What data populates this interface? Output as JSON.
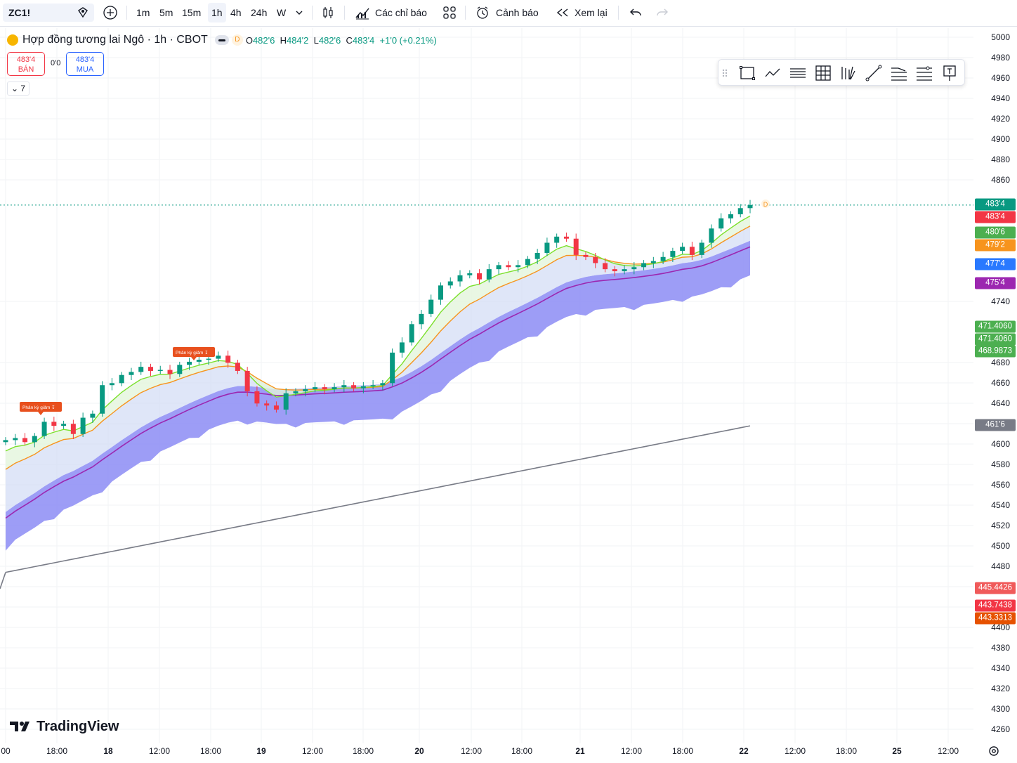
{
  "toolbar": {
    "symbol": "ZC1!",
    "timeframes": [
      "1m",
      "5m",
      "15m",
      "1h",
      "4h",
      "24h",
      "W"
    ],
    "active_timeframe": "1h",
    "indicators_label": "Các chỉ báo",
    "alert_label": "Cảnh báo",
    "replay_label": "Xem lại"
  },
  "legend": {
    "title": "Hợp đồng tương lai Ngô · 1h · CBOT",
    "badge": "D",
    "open_label": "O",
    "open": "482'6",
    "high_label": "H",
    "high": "484'2",
    "low_label": "L",
    "low": "482'6",
    "close_label": "C",
    "close": "483'4",
    "change": "+1'0 (+0.21%)"
  },
  "order_panel": {
    "sell_price": "483'4",
    "sell_label": "BÁN",
    "spread": "0'0",
    "buy_price": "483'4",
    "buy_label": "MUA",
    "collapse_count": "7"
  },
  "colors": {
    "up": "#089981",
    "down": "#f23645",
    "ema_green": "#7ce02c",
    "ema_orange": "#f7941d",
    "ma_purple": "#9c27b0",
    "ma_gray": "#787b86",
    "cloud_dark": "#8c8cf5",
    "cloud_light": "#d2dcf5"
  },
  "price_axis": {
    "ticks": [
      "5000",
      "4980",
      "4960",
      "4940",
      "4920",
      "4900",
      "4880",
      "4860",
      "4740",
      "4680",
      "4660",
      "4640",
      "4600",
      "4580",
      "4560",
      "4540",
      "4520",
      "4500",
      "4480",
      "4400",
      "4380",
      "4340",
      "4320",
      "4300",
      "4260"
    ],
    "tags": [
      {
        "text": "483'4",
        "color": "#089981"
      },
      {
        "text": "483'4",
        "color": "#f23645"
      },
      {
        "text": "480'6",
        "color": "#4caf50"
      },
      {
        "text": "479'2",
        "color": "#f7941d"
      },
      {
        "text": "477'4",
        "color": "#2979ff"
      },
      {
        "text": "475'4",
        "color": "#9c27b0"
      },
      {
        "text": "471.4060",
        "color": "#4caf50"
      },
      {
        "text": "471.4060",
        "color": "#4caf50"
      },
      {
        "text": "468.9873",
        "color": "#4caf50"
      },
      {
        "text": "461'6",
        "color": "#787b86"
      },
      {
        "text": "445.4426",
        "color": "#f05a5a"
      },
      {
        "text": "443.7438",
        "color": "#f23645"
      },
      {
        "text": "443.3313",
        "color": "#e65100"
      }
    ]
  },
  "time_axis": [
    "00",
    "18:00",
    "18",
    "12:00",
    "18:00",
    "19",
    "12:00",
    "18:00",
    "20",
    "12:00",
    "18:00",
    "21",
    "12:00",
    "18:00",
    "22",
    "12:00",
    "18:00",
    "25",
    "12:00"
  ],
  "annotations": [
    {
      "text": "Phân kỳ giảm"
    },
    {
      "text": "Phân kỳ giảm"
    }
  ],
  "brand": "TradingView",
  "chart_data": {
    "type": "candlestick",
    "symbol": "ZC1!",
    "interval": "1h",
    "series": [
      {
        "name": "close",
        "values": [
          4604,
          4606,
          4602,
          4608,
          4622,
          4618,
          4620,
          4610,
          4626,
          4630,
          4658,
          4660,
          4668,
          4671,
          4676,
          4672,
          4673,
          4669,
          4678,
          4681,
          4683,
          4684,
          4687,
          4680,
          4672,
          4652,
          4640,
          4638,
          4634,
          4650,
          4652,
          4654,
          4656,
          4654,
          4656,
          4658,
          4655,
          4657,
          4658,
          4660,
          4690,
          4700,
          4718,
          4728,
          4742,
          4756,
          4760,
          4766,
          4768,
          4762,
          4772,
          4776,
          4774,
          4776,
          4782,
          4788,
          4798,
          4804,
          4802,
          4786,
          4784,
          4778,
          4772,
          4770,
          4772,
          4774,
          4778,
          4780,
          4784,
          4790,
          4794,
          4786,
          4798,
          4812,
          4822,
          4826,
          4832,
          4835
        ]
      }
    ],
    "ylabel": "",
    "ylim": [
      4250,
      5005
    ]
  }
}
